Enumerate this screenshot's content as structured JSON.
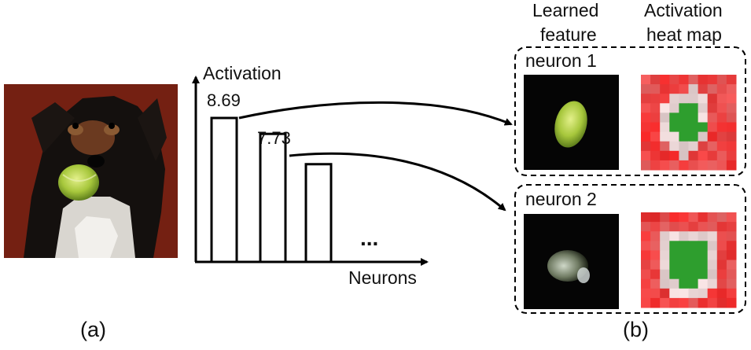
{
  "panel_a": {
    "caption": "(a)"
  },
  "chart": {
    "y_axis_label": "Activation",
    "x_axis_label": "Neurons",
    "ellipsis": "...",
    "bars": [
      {
        "value": 8.69,
        "label": "8.69"
      },
      {
        "value": 7.73,
        "label": "7.73"
      },
      {
        "value": 5.9,
        "label": ""
      }
    ]
  },
  "panel_b": {
    "caption": "(b)",
    "col_learned_line1": "Learned",
    "col_learned_line2": "feature",
    "col_heat_line1": "Activation",
    "col_heat_line2": "heat map",
    "neurons": [
      {
        "label": "neuron 1"
      },
      {
        "label": "neuron 2"
      }
    ]
  },
  "colors": {
    "stroke": "#000000",
    "heat_red": "#e53935",
    "heat_green": "#2e9e2e",
    "feature_green": "#a7c73c"
  }
}
